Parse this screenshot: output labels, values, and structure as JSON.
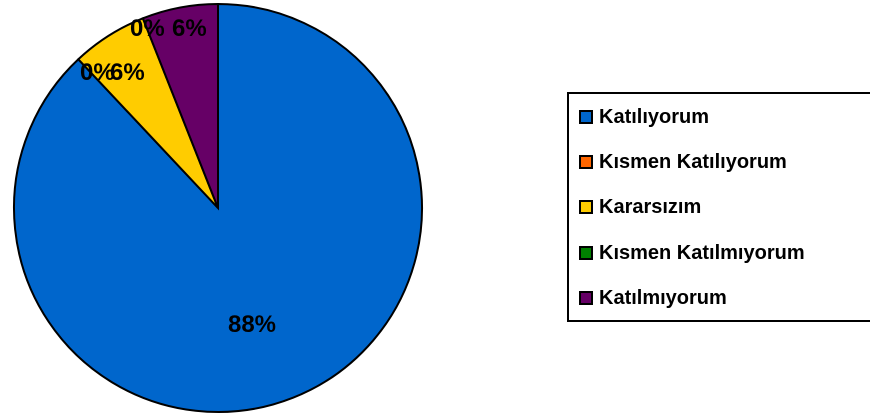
{
  "chart_data": {
    "type": "pie",
    "categories": [
      "Katılıyorum",
      "Kısmen Katılıyorum",
      "Kararsızım",
      "Kısmen Katılmıyorum",
      "Katılmıyorum"
    ],
    "values": [
      88,
      0,
      6,
      0,
      6
    ],
    "data_labels": [
      "88%",
      "0%",
      "6%",
      "0%",
      "6%"
    ],
    "colors": [
      "#0066CC",
      "#FF6600",
      "#FFCC00",
      "#008000",
      "#660066"
    ],
    "legend_placement": "right"
  }
}
